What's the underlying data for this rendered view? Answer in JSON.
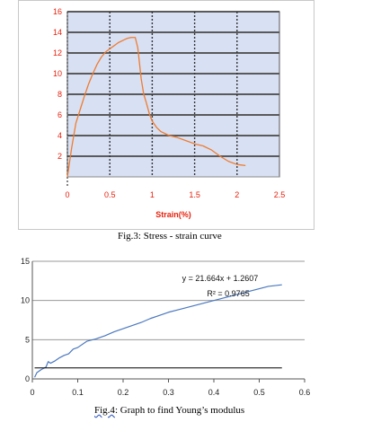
{
  "captions": {
    "fig3": "Fig.3: Stress - strain curve",
    "fig4_prefix": "Fig.4",
    "fig4_rest": ": Graph to find Young’s modulus"
  },
  "chart_data": [
    {
      "type": "line",
      "title": "",
      "xlabel": "Strain(%)",
      "ylabel": "",
      "xlim": [
        0,
        2.5
      ],
      "ylim": [
        0,
        16
      ],
      "x_ticks": [
        0,
        0.5,
        1,
        1.5,
        2,
        2.5
      ],
      "x_tick_labels": [
        "0",
        "0.5",
        "1",
        "1.5",
        "2",
        "2.5"
      ],
      "y_ticks": [
        2,
        4,
        6,
        8,
        10,
        12,
        14,
        16
      ],
      "y_tick_labels": [
        "2",
        "4",
        "6",
        "8",
        "10",
        "12",
        "14",
        "16"
      ],
      "grid": true,
      "plot_background": "#d8e0f4",
      "series": [
        {
          "color": "#f07c2e",
          "x": [
            0.0,
            0.05,
            0.1,
            0.15,
            0.2,
            0.25,
            0.3,
            0.35,
            0.4,
            0.45,
            0.5,
            0.55,
            0.6,
            0.65,
            0.7,
            0.75,
            0.8,
            0.83,
            0.85,
            0.87,
            0.9,
            0.93,
            0.95,
            0.97,
            1.0,
            1.05,
            1.1,
            1.2,
            1.3,
            1.4,
            1.5,
            1.6,
            1.7,
            1.8,
            1.9,
            2.0,
            2.1
          ],
          "y": [
            0.0,
            2.8,
            5.2,
            6.5,
            7.8,
            9.0,
            10.0,
            10.9,
            11.6,
            12.1,
            12.4,
            12.7,
            13.0,
            13.2,
            13.4,
            13.5,
            13.5,
            12.5,
            11.0,
            9.5,
            8.0,
            7.2,
            6.6,
            6.0,
            5.4,
            4.8,
            4.4,
            4.0,
            3.8,
            3.5,
            3.2,
            3.0,
            2.6,
            2.0,
            1.5,
            1.2,
            1.1
          ]
        }
      ]
    },
    {
      "type": "line",
      "title": "",
      "xlabel": "",
      "ylabel": "",
      "xlim": [
        0,
        0.6
      ],
      "ylim": [
        0,
        15
      ],
      "x_ticks": [
        0,
        0.1,
        0.2,
        0.3,
        0.4,
        0.5,
        0.6
      ],
      "x_tick_labels": [
        "0",
        "0.1",
        "0.2",
        "0.3",
        "0.4",
        "0.5",
        "0.6"
      ],
      "y_ticks": [
        0,
        5,
        10,
        15
      ],
      "y_tick_labels": [
        "0",
        "5",
        "10",
        "15"
      ],
      "grid": true,
      "annotations": {
        "equation": "y = 21.664x + 1.2607",
        "r_squared": "R² = 0.9765"
      },
      "series": [
        {
          "color": "#4a78c0",
          "x": [
            0.005,
            0.01,
            0.02,
            0.03,
            0.035,
            0.04,
            0.05,
            0.06,
            0.07,
            0.08,
            0.09,
            0.1,
            0.12,
            0.14,
            0.16,
            0.18,
            0.2,
            0.22,
            0.24,
            0.26,
            0.28,
            0.3,
            0.32,
            0.34,
            0.36,
            0.38,
            0.4,
            0.42,
            0.44,
            0.46,
            0.48,
            0.5,
            0.52,
            0.55
          ],
          "y": [
            0.2,
            0.8,
            1.2,
            1.5,
            2.2,
            2.0,
            2.3,
            2.7,
            3.0,
            3.2,
            3.8,
            4.0,
            4.8,
            5.1,
            5.5,
            6.0,
            6.4,
            6.8,
            7.2,
            7.7,
            8.1,
            8.5,
            8.8,
            9.1,
            9.4,
            9.7,
            10.0,
            10.3,
            10.6,
            10.9,
            11.2,
            11.5,
            11.8,
            12.0
          ]
        },
        {
          "color": "#000000",
          "x": [
            0.005,
            0.55
          ],
          "y": [
            1.4,
            1.4
          ]
        }
      ]
    }
  ]
}
